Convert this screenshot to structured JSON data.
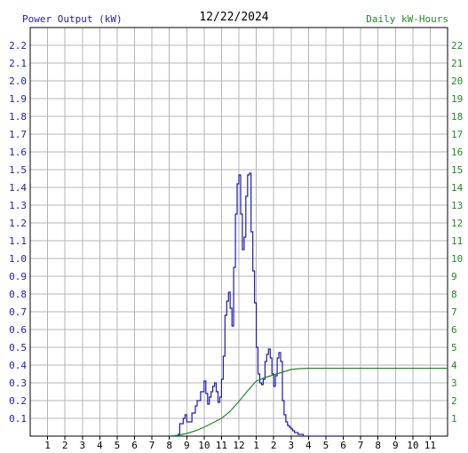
{
  "header": {
    "left_label": "Power Output (kW)",
    "date": "12/22/2024",
    "right_label": "Daily kW-Hours"
  },
  "colors": {
    "power": "#1c1cb4",
    "energy": "#208a20",
    "grid": "#b4b4b4",
    "axis": "#000000"
  },
  "chart_data": {
    "type": "line",
    "title": "12/22/2024",
    "grid": true,
    "x_ticks": [
      "1",
      "2",
      "3",
      "4",
      "5",
      "6",
      "7",
      "8",
      "9",
      "10",
      "11",
      "12",
      "1",
      "2",
      "3",
      "4",
      "5",
      "6",
      "7",
      "8",
      "9",
      "10",
      "11"
    ],
    "xlim": [
      0,
      24
    ],
    "y_left": {
      "label": "Power Output (kW)",
      "ylim": [
        0,
        2.3
      ],
      "ticks": [
        "0.1",
        "0.2",
        "0.3",
        "0.4",
        "0.5",
        "0.6",
        "0.7",
        "0.8",
        "0.9",
        "1.0",
        "1.1",
        "1.2",
        "1.3",
        "1.4",
        "1.5",
        "1.6",
        "1.7",
        "1.8",
        "1.9",
        "2.0",
        "2.1",
        "2.2"
      ]
    },
    "y_right": {
      "label": "Daily kW-Hours",
      "ylim": [
        0,
        23
      ],
      "ticks": [
        "1",
        "2",
        "3",
        "4",
        "5",
        "6",
        "7",
        "8",
        "9",
        "10",
        "11",
        "12",
        "13",
        "14",
        "15",
        "16",
        "17",
        "18",
        "19",
        "20",
        "21",
        "22"
      ]
    },
    "series": [
      {
        "name": "Power Output (kW)",
        "axis": "left",
        "x": [
          8.0,
          8.5,
          8.6,
          8.8,
          8.9,
          9.0,
          9.1,
          9.3,
          9.5,
          9.6,
          9.8,
          10.0,
          10.1,
          10.2,
          10.3,
          10.4,
          10.5,
          10.6,
          10.7,
          10.8,
          10.9,
          11.0,
          11.1,
          11.2,
          11.3,
          11.4,
          11.5,
          11.6,
          11.7,
          11.8,
          11.9,
          12.0,
          12.1,
          12.2,
          12.3,
          12.4,
          12.5,
          12.6,
          12.7,
          12.8,
          12.9,
          13.0,
          13.1,
          13.2,
          13.3,
          13.4,
          13.5,
          13.6,
          13.7,
          13.8,
          13.9,
          14.0,
          14.1,
          14.2,
          14.3,
          14.4,
          14.5,
          14.6,
          14.7,
          14.8,
          14.9,
          15.0,
          15.1,
          15.2,
          15.3,
          15.4,
          15.5,
          15.6,
          15.7,
          15.8,
          15.9,
          16.0,
          16.2,
          16.5,
          17.0,
          17.5,
          18.0
        ],
        "values": [
          0.0,
          0.01,
          0.07,
          0.1,
          0.12,
          0.08,
          0.08,
          0.13,
          0.17,
          0.2,
          0.25,
          0.31,
          0.24,
          0.18,
          0.22,
          0.25,
          0.28,
          0.3,
          0.25,
          0.19,
          0.22,
          0.32,
          0.45,
          0.68,
          0.76,
          0.81,
          0.72,
          0.62,
          0.95,
          1.25,
          1.42,
          1.47,
          1.25,
          1.05,
          1.12,
          1.35,
          1.47,
          1.48,
          1.15,
          0.93,
          0.75,
          0.5,
          0.35,
          0.3,
          0.29,
          0.32,
          0.42,
          0.46,
          0.49,
          0.44,
          0.35,
          0.28,
          0.34,
          0.44,
          0.47,
          0.42,
          0.2,
          0.12,
          0.08,
          0.06,
          0.05,
          0.04,
          0.03,
          0.02,
          0.02,
          0.01,
          0.01,
          0.01,
          0.0,
          0.0,
          0.0,
          0.0,
          0.0,
          0.0,
          0.0,
          0.0,
          0.0
        ]
      },
      {
        "name": "Daily kW-Hours",
        "axis": "right",
        "x": [
          8.0,
          8.5,
          9.0,
          9.5,
          10.0,
          10.5,
          11.0,
          11.5,
          12.0,
          12.5,
          13.0,
          13.5,
          14.0,
          14.5,
          15.0,
          15.5,
          16.0,
          17.0,
          18.0,
          20.0,
          24.0
        ],
        "values": [
          0.0,
          0.05,
          0.15,
          0.3,
          0.5,
          0.75,
          1.0,
          1.4,
          1.95,
          2.55,
          3.1,
          3.3,
          3.45,
          3.6,
          3.75,
          3.8,
          3.82,
          3.82,
          3.82,
          3.82,
          3.82
        ]
      }
    ]
  }
}
